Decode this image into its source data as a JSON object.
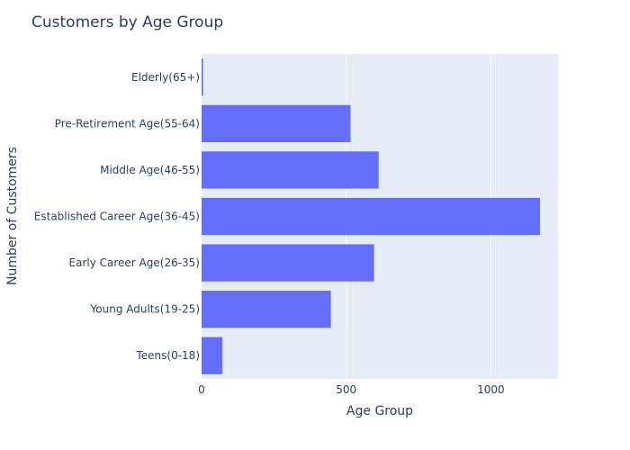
{
  "colors": {
    "plot_background": "#e5ecf6",
    "gridline": "#ffffff",
    "bar": "#636efa",
    "text": "#2a3f5f"
  },
  "chart_data": {
    "type": "bar",
    "orientation": "horizontal",
    "title": "Customers by Age Group",
    "xlabel": "Age Group",
    "ylabel": "Number of Customers",
    "categories": [
      "Teens(0-18)",
      "Young Adults(19-25)",
      "Early Career Age(26-35)",
      "Established Career Age(36-45)",
      "Middle Age(46-55)",
      "Pre-Retirement Age(55-64)",
      "Elderly(65+)"
    ],
    "values": [
      72,
      447,
      596,
      1170,
      612,
      515,
      5
    ],
    "xlim": [
      0,
      1232
    ],
    "xticks": [
      0,
      500,
      1000
    ],
    "xtick_labels": [
      "0",
      "500",
      "1000"
    ],
    "grid": true,
    "legend": false
  }
}
